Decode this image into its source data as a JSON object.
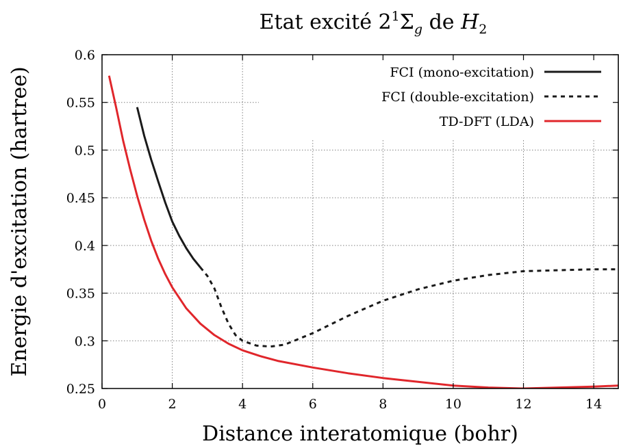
{
  "chart_data": {
    "type": "line",
    "title": {
      "main": "Etat excité 2",
      "sup": "1",
      "symbol": "Σ",
      "sub": "g",
      "mid": " de ",
      "molecule": "H",
      "molecule_sub": "2"
    },
    "xlabel": "Distance interatomique (bohr)",
    "ylabel": "Energie d'excitation (hartree)",
    "xlim": [
      0,
      14.7
    ],
    "ylim": [
      0.25,
      0.6
    ],
    "xticks": [
      "0",
      "2",
      "4",
      "6",
      "8",
      "10",
      "12",
      "14"
    ],
    "yticks": [
      "0.25",
      "0.3",
      "0.35",
      "0.4",
      "0.45",
      "0.5",
      "0.55",
      "0.6"
    ],
    "grid": true,
    "legend_position": "top-right",
    "series": [
      {
        "name": "FCI (mono-excitation)",
        "color": "#1a1a1a",
        "style": "solid",
        "points": [
          [
            1.0,
            0.545
          ],
          [
            1.2,
            0.515
          ],
          [
            1.4,
            0.49
          ],
          [
            1.6,
            0.467
          ],
          [
            1.8,
            0.445
          ],
          [
            2.0,
            0.425
          ],
          [
            2.2,
            0.41
          ],
          [
            2.4,
            0.397
          ],
          [
            2.6,
            0.386
          ],
          [
            2.8,
            0.377
          ]
        ]
      },
      {
        "name": "FCI (double-excitation)",
        "color": "#1a1a1a",
        "style": "dashed",
        "points": [
          [
            2.8,
            0.377
          ],
          [
            3.0,
            0.368
          ],
          [
            3.2,
            0.355
          ],
          [
            3.4,
            0.335
          ],
          [
            3.6,
            0.318
          ],
          [
            3.8,
            0.306
          ],
          [
            4.0,
            0.3
          ],
          [
            4.4,
            0.295
          ],
          [
            4.8,
            0.294
          ],
          [
            5.2,
            0.296
          ],
          [
            5.6,
            0.302
          ],
          [
            6.0,
            0.308
          ],
          [
            7.0,
            0.326
          ],
          [
            8.0,
            0.342
          ],
          [
            9.0,
            0.354
          ],
          [
            10.0,
            0.363
          ],
          [
            11.0,
            0.369
          ],
          [
            12.0,
            0.373
          ],
          [
            13.0,
            0.374
          ],
          [
            14.0,
            0.375
          ],
          [
            14.7,
            0.375
          ]
        ]
      },
      {
        "name": "TD-DFT (LDA)",
        "color": "#e0262b",
        "style": "solid",
        "points": [
          [
            0.2,
            0.578
          ],
          [
            0.4,
            0.545
          ],
          [
            0.6,
            0.51
          ],
          [
            0.8,
            0.48
          ],
          [
            1.0,
            0.452
          ],
          [
            1.2,
            0.427
          ],
          [
            1.4,
            0.405
          ],
          [
            1.6,
            0.386
          ],
          [
            1.8,
            0.37
          ],
          [
            2.0,
            0.356
          ],
          [
            2.4,
            0.334
          ],
          [
            2.8,
            0.318
          ],
          [
            3.2,
            0.306
          ],
          [
            3.6,
            0.297
          ],
          [
            4.0,
            0.29
          ],
          [
            4.5,
            0.284
          ],
          [
            5.0,
            0.279
          ],
          [
            6.0,
            0.272
          ],
          [
            7.0,
            0.266
          ],
          [
            8.0,
            0.261
          ],
          [
            9.0,
            0.257
          ],
          [
            10.0,
            0.253
          ],
          [
            11.0,
            0.251
          ],
          [
            12.0,
            0.25
          ],
          [
            13.0,
            0.251
          ],
          [
            14.0,
            0.252
          ],
          [
            14.7,
            0.253
          ]
        ]
      }
    ]
  }
}
